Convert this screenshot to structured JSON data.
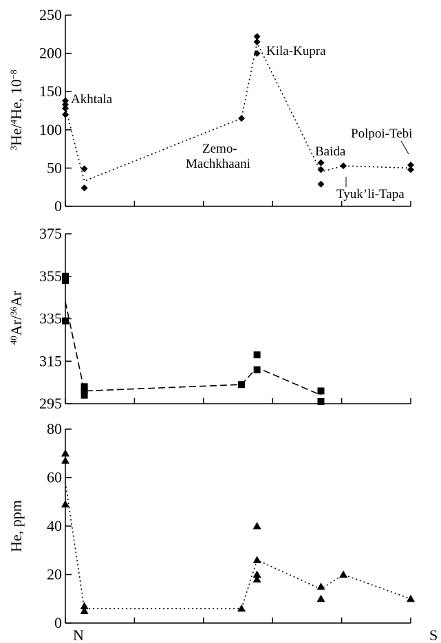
{
  "chart_data": [
    {
      "type": "scatter",
      "ylabel": {
        "sup1": "3",
        "a": "He/",
        "sup2": "4",
        "b": "He, 10",
        "sup3": "−8"
      },
      "ylim": [
        0,
        250
      ],
      "yticks": [
        "0",
        "50",
        "100",
        "150",
        "200",
        "250"
      ],
      "marker": "diamond",
      "line_style": "dotted",
      "points": [
        {
          "x": 0,
          "y": 138
        },
        {
          "x": 0,
          "y": 133
        },
        {
          "x": 0,
          "y": 128
        },
        {
          "x": 0,
          "y": 120
        },
        {
          "x": 0.55,
          "y": 49
        },
        {
          "x": 0.55,
          "y": 24
        },
        {
          "x": 5.1,
          "y": 115
        },
        {
          "x": 5.55,
          "y": 222
        },
        {
          "x": 5.55,
          "y": 215
        },
        {
          "x": 5.55,
          "y": 200
        },
        {
          "x": 7.4,
          "y": 57
        },
        {
          "x": 7.4,
          "y": 48
        },
        {
          "x": 7.4,
          "y": 29
        },
        {
          "x": 8.05,
          "y": 53
        },
        {
          "x": 10,
          "y": 54
        },
        {
          "x": 10,
          "y": 48
        }
      ],
      "trend": [
        {
          "x": 0,
          "y": 130
        },
        {
          "x": 0.55,
          "y": 33
        },
        {
          "x": 5.1,
          "y": 115
        },
        {
          "x": 5.55,
          "y": 214
        },
        {
          "x": 7.4,
          "y": 45
        },
        {
          "x": 8.05,
          "y": 53
        },
        {
          "x": 10,
          "y": 50
        }
      ],
      "annotations": {
        "akhtala": "Akhtala",
        "kila_kupra": "Kila-Kupra",
        "zemo_1": "Zemo-",
        "zemo_2": "Machkhaani",
        "baida": "Baida",
        "polpoi_tebi": "Polpoi-Tebi",
        "tyukli_tapa": "Tyuk’li-Tapa"
      }
    },
    {
      "type": "scatter",
      "ylabel": {
        "sup1": "40",
        "a": "Ar/",
        "sup2": "36",
        "b": "Ar"
      },
      "ylim": [
        295,
        375
      ],
      "yticks": [
        "295",
        "315",
        "335",
        "355",
        "375"
      ],
      "marker": "square",
      "line_style": "dashed",
      "points": [
        {
          "x": 0,
          "y": 355
        },
        {
          "x": 0,
          "y": 353
        },
        {
          "x": 0,
          "y": 334
        },
        {
          "x": 0.55,
          "y": 303
        },
        {
          "x": 0.55,
          "y": 301
        },
        {
          "x": 0.55,
          "y": 299
        },
        {
          "x": 5.1,
          "y": 304
        },
        {
          "x": 5.55,
          "y": 318
        },
        {
          "x": 5.55,
          "y": 311
        },
        {
          "x": 7.4,
          "y": 301
        },
        {
          "x": 7.4,
          "y": 296
        }
      ],
      "trend": [
        {
          "x": 0,
          "y": 343
        },
        {
          "x": 0.55,
          "y": 301
        },
        {
          "x": 5.1,
          "y": 304
        },
        {
          "x": 5.55,
          "y": 312
        },
        {
          "x": 7.4,
          "y": 299
        }
      ]
    },
    {
      "type": "scatter",
      "ylabel": {
        "a": "He, ppm"
      },
      "ylim": [
        0,
        80
      ],
      "yticks": [
        "0",
        "20",
        "40",
        "60",
        "80"
      ],
      "marker": "triangle",
      "line_style": "dotted",
      "points": [
        {
          "x": 0,
          "y": 70
        },
        {
          "x": 0,
          "y": 67
        },
        {
          "x": 0,
          "y": 49
        },
        {
          "x": 0.55,
          "y": 7
        },
        {
          "x": 0.55,
          "y": 5
        },
        {
          "x": 5.1,
          "y": 6
        },
        {
          "x": 5.55,
          "y": 40
        },
        {
          "x": 5.55,
          "y": 26
        },
        {
          "x": 5.55,
          "y": 20
        },
        {
          "x": 5.55,
          "y": 18
        },
        {
          "x": 7.4,
          "y": 15
        },
        {
          "x": 7.4,
          "y": 10
        },
        {
          "x": 8.05,
          "y": 20
        },
        {
          "x": 10,
          "y": 10
        }
      ],
      "trend": [
        {
          "x": 0,
          "y": 58
        },
        {
          "x": 0.55,
          "y": 6
        },
        {
          "x": 5.1,
          "y": 6
        },
        {
          "x": 5.55,
          "y": 26
        },
        {
          "x": 7.4,
          "y": 14
        },
        {
          "x": 8.05,
          "y": 20
        },
        {
          "x": 10,
          "y": 10
        }
      ]
    }
  ],
  "x_axis": {
    "xlim": [
      0,
      10
    ],
    "left_label": "N",
    "right_label": "S",
    "minor_ticks": 5
  }
}
